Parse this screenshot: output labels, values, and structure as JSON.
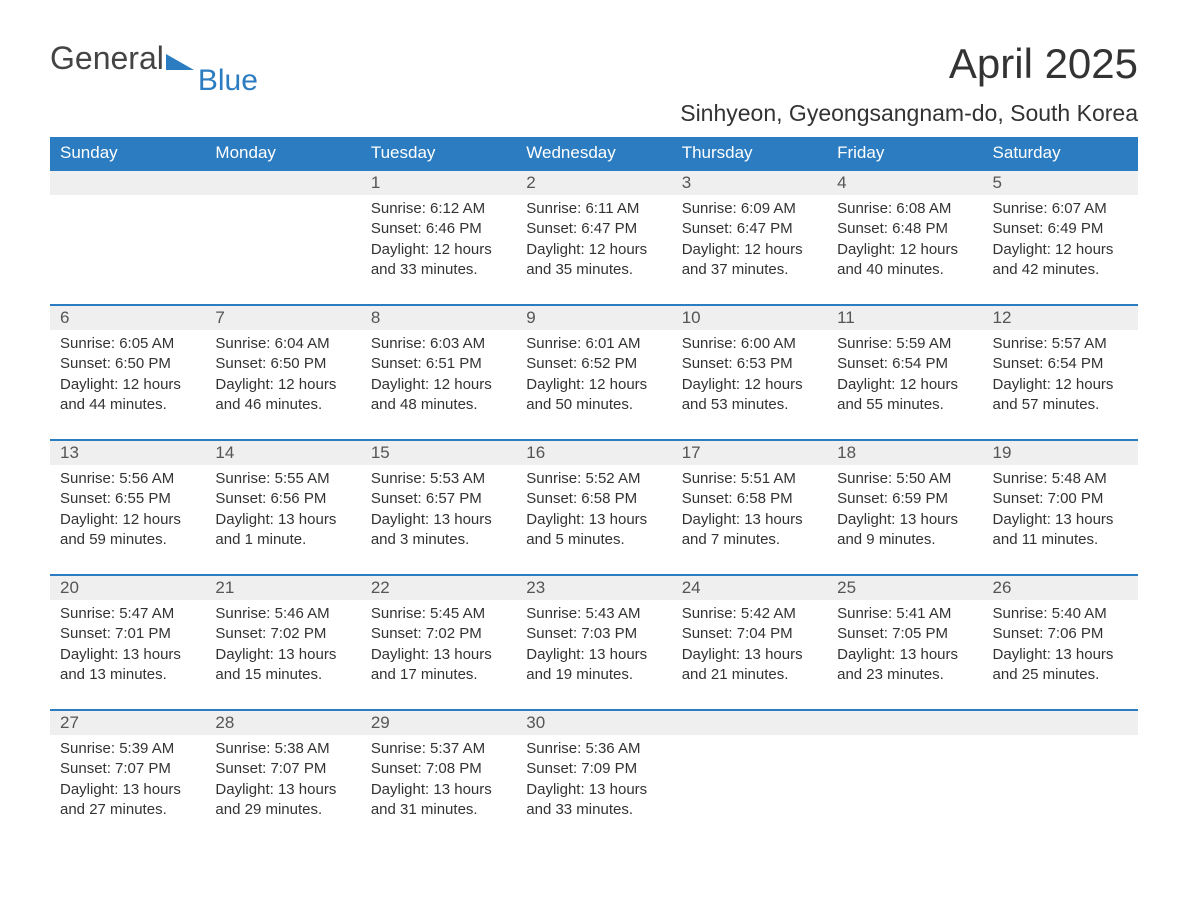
{
  "logo": {
    "main": "General",
    "accent": "Blue"
  },
  "title": "April 2025",
  "location": "Sinhyeon, Gyeongsangnam-do, South Korea",
  "colors": {
    "brand": "#2b7cc0",
    "header_bg": "#2b7cc0",
    "header_text": "#ffffff",
    "daynum_bg": "#efefef",
    "text": "#333333",
    "divider": "#2b7cc0"
  },
  "typography": {
    "title_fontsize": 42,
    "location_fontsize": 23,
    "header_fontsize": 17,
    "daynum_fontsize": 17,
    "body_fontsize": 15
  },
  "layout": {
    "columns": 7,
    "rows": 5
  },
  "weekdays": [
    "Sunday",
    "Monday",
    "Tuesday",
    "Wednesday",
    "Thursday",
    "Friday",
    "Saturday"
  ],
  "weeks": [
    [
      null,
      null,
      {
        "n": "1",
        "sunrise": "Sunrise: 6:12 AM",
        "sunset": "Sunset: 6:46 PM",
        "d1": "Daylight: 12 hours",
        "d2": "and 33 minutes."
      },
      {
        "n": "2",
        "sunrise": "Sunrise: 6:11 AM",
        "sunset": "Sunset: 6:47 PM",
        "d1": "Daylight: 12 hours",
        "d2": "and 35 minutes."
      },
      {
        "n": "3",
        "sunrise": "Sunrise: 6:09 AM",
        "sunset": "Sunset: 6:47 PM",
        "d1": "Daylight: 12 hours",
        "d2": "and 37 minutes."
      },
      {
        "n": "4",
        "sunrise": "Sunrise: 6:08 AM",
        "sunset": "Sunset: 6:48 PM",
        "d1": "Daylight: 12 hours",
        "d2": "and 40 minutes."
      },
      {
        "n": "5",
        "sunrise": "Sunrise: 6:07 AM",
        "sunset": "Sunset: 6:49 PM",
        "d1": "Daylight: 12 hours",
        "d2": "and 42 minutes."
      }
    ],
    [
      {
        "n": "6",
        "sunrise": "Sunrise: 6:05 AM",
        "sunset": "Sunset: 6:50 PM",
        "d1": "Daylight: 12 hours",
        "d2": "and 44 minutes."
      },
      {
        "n": "7",
        "sunrise": "Sunrise: 6:04 AM",
        "sunset": "Sunset: 6:50 PM",
        "d1": "Daylight: 12 hours",
        "d2": "and 46 minutes."
      },
      {
        "n": "8",
        "sunrise": "Sunrise: 6:03 AM",
        "sunset": "Sunset: 6:51 PM",
        "d1": "Daylight: 12 hours",
        "d2": "and 48 minutes."
      },
      {
        "n": "9",
        "sunrise": "Sunrise: 6:01 AM",
        "sunset": "Sunset: 6:52 PM",
        "d1": "Daylight: 12 hours",
        "d2": "and 50 minutes."
      },
      {
        "n": "10",
        "sunrise": "Sunrise: 6:00 AM",
        "sunset": "Sunset: 6:53 PM",
        "d1": "Daylight: 12 hours",
        "d2": "and 53 minutes."
      },
      {
        "n": "11",
        "sunrise": "Sunrise: 5:59 AM",
        "sunset": "Sunset: 6:54 PM",
        "d1": "Daylight: 12 hours",
        "d2": "and 55 minutes."
      },
      {
        "n": "12",
        "sunrise": "Sunrise: 5:57 AM",
        "sunset": "Sunset: 6:54 PM",
        "d1": "Daylight: 12 hours",
        "d2": "and 57 minutes."
      }
    ],
    [
      {
        "n": "13",
        "sunrise": "Sunrise: 5:56 AM",
        "sunset": "Sunset: 6:55 PM",
        "d1": "Daylight: 12 hours",
        "d2": "and 59 minutes."
      },
      {
        "n": "14",
        "sunrise": "Sunrise: 5:55 AM",
        "sunset": "Sunset: 6:56 PM",
        "d1": "Daylight: 13 hours",
        "d2": "and 1 minute."
      },
      {
        "n": "15",
        "sunrise": "Sunrise: 5:53 AM",
        "sunset": "Sunset: 6:57 PM",
        "d1": "Daylight: 13 hours",
        "d2": "and 3 minutes."
      },
      {
        "n": "16",
        "sunrise": "Sunrise: 5:52 AM",
        "sunset": "Sunset: 6:58 PM",
        "d1": "Daylight: 13 hours",
        "d2": "and 5 minutes."
      },
      {
        "n": "17",
        "sunrise": "Sunrise: 5:51 AM",
        "sunset": "Sunset: 6:58 PM",
        "d1": "Daylight: 13 hours",
        "d2": "and 7 minutes."
      },
      {
        "n": "18",
        "sunrise": "Sunrise: 5:50 AM",
        "sunset": "Sunset: 6:59 PM",
        "d1": "Daylight: 13 hours",
        "d2": "and 9 minutes."
      },
      {
        "n": "19",
        "sunrise": "Sunrise: 5:48 AM",
        "sunset": "Sunset: 7:00 PM",
        "d1": "Daylight: 13 hours",
        "d2": "and 11 minutes."
      }
    ],
    [
      {
        "n": "20",
        "sunrise": "Sunrise: 5:47 AM",
        "sunset": "Sunset: 7:01 PM",
        "d1": "Daylight: 13 hours",
        "d2": "and 13 minutes."
      },
      {
        "n": "21",
        "sunrise": "Sunrise: 5:46 AM",
        "sunset": "Sunset: 7:02 PM",
        "d1": "Daylight: 13 hours",
        "d2": "and 15 minutes."
      },
      {
        "n": "22",
        "sunrise": "Sunrise: 5:45 AM",
        "sunset": "Sunset: 7:02 PM",
        "d1": "Daylight: 13 hours",
        "d2": "and 17 minutes."
      },
      {
        "n": "23",
        "sunrise": "Sunrise: 5:43 AM",
        "sunset": "Sunset: 7:03 PM",
        "d1": "Daylight: 13 hours",
        "d2": "and 19 minutes."
      },
      {
        "n": "24",
        "sunrise": "Sunrise: 5:42 AM",
        "sunset": "Sunset: 7:04 PM",
        "d1": "Daylight: 13 hours",
        "d2": "and 21 minutes."
      },
      {
        "n": "25",
        "sunrise": "Sunrise: 5:41 AM",
        "sunset": "Sunset: 7:05 PM",
        "d1": "Daylight: 13 hours",
        "d2": "and 23 minutes."
      },
      {
        "n": "26",
        "sunrise": "Sunrise: 5:40 AM",
        "sunset": "Sunset: 7:06 PM",
        "d1": "Daylight: 13 hours",
        "d2": "and 25 minutes."
      }
    ],
    [
      {
        "n": "27",
        "sunrise": "Sunrise: 5:39 AM",
        "sunset": "Sunset: 7:07 PM",
        "d1": "Daylight: 13 hours",
        "d2": "and 27 minutes."
      },
      {
        "n": "28",
        "sunrise": "Sunrise: 5:38 AM",
        "sunset": "Sunset: 7:07 PM",
        "d1": "Daylight: 13 hours",
        "d2": "and 29 minutes."
      },
      {
        "n": "29",
        "sunrise": "Sunrise: 5:37 AM",
        "sunset": "Sunset: 7:08 PM",
        "d1": "Daylight: 13 hours",
        "d2": "and 31 minutes."
      },
      {
        "n": "30",
        "sunrise": "Sunrise: 5:36 AM",
        "sunset": "Sunset: 7:09 PM",
        "d1": "Daylight: 13 hours",
        "d2": "and 33 minutes."
      },
      null,
      null,
      null
    ]
  ]
}
